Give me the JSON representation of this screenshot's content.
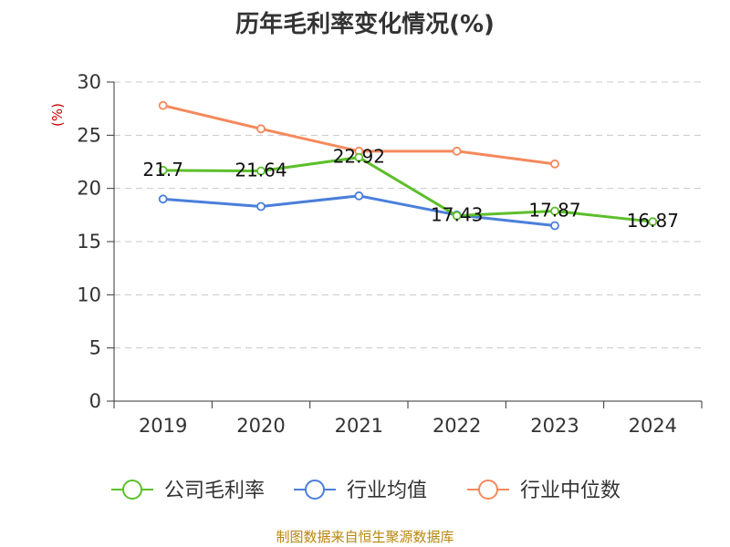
{
  "chart_data": {
    "type": "line",
    "title": "历年毛利率变化情况(%)",
    "ylabel": "(%)",
    "categories": [
      "2019",
      "2020",
      "2021",
      "2022",
      "2023",
      "2024"
    ],
    "ylim": [
      0,
      30
    ],
    "yticks": [
      0,
      5,
      10,
      15,
      20,
      25,
      30
    ],
    "grid": true,
    "legend_position": "bottom",
    "series": [
      {
        "name": "公司毛利率",
        "color": "#5cbf2a",
        "values": [
          21.7,
          21.64,
          22.92,
          17.43,
          17.87,
          16.87
        ],
        "labels": [
          "21.7",
          "21.64",
          "22.92",
          "17.43",
          "17.87",
          "16.87"
        ]
      },
      {
        "name": "行业均值",
        "color": "#4a7fdb",
        "values": [
          19.0,
          18.3,
          19.3,
          17.5,
          16.5,
          null
        ]
      },
      {
        "name": "行业中位数",
        "color": "#f4895c",
        "values": [
          27.8,
          25.6,
          23.5,
          23.5,
          22.3,
          null
        ]
      }
    ],
    "source": "制图数据来自恒生聚源数据库"
  }
}
